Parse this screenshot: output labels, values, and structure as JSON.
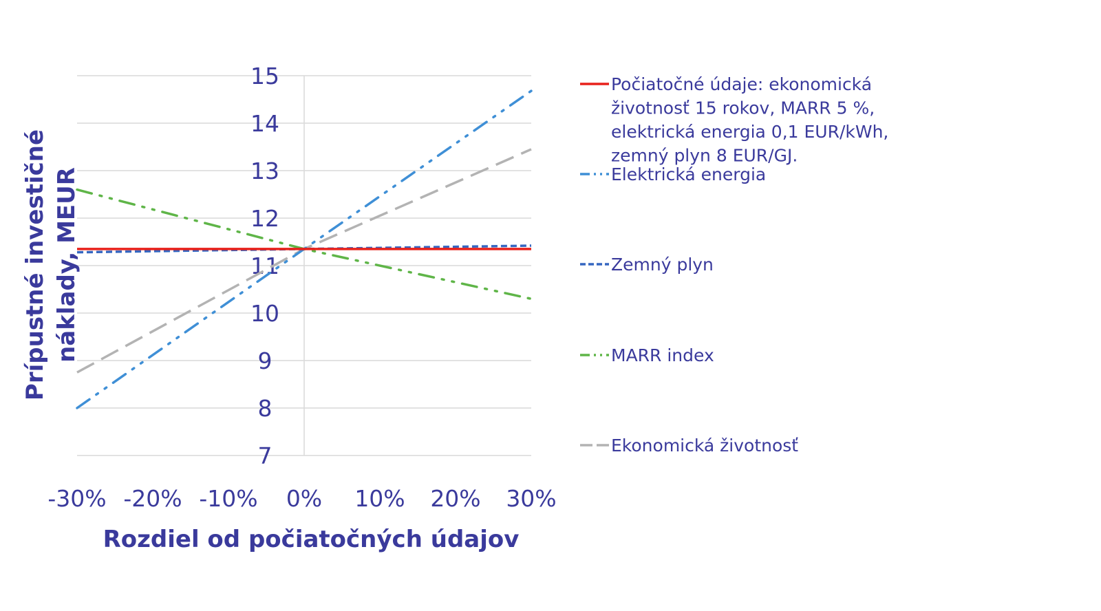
{
  "chart_data": {
    "type": "line",
    "xlabel": "Rozdiel od počiatočných údajov",
    "ylabel_lines": [
      "Prípustné investičné",
      "náklady, MEUR"
    ],
    "x": [
      -30,
      0,
      30
    ],
    "x_ticks": [
      "-30%",
      "-20%",
      "-10%",
      "0%",
      "10%",
      "20%",
      "30%"
    ],
    "x_tick_values": [
      -30,
      -20,
      -10,
      0,
      10,
      20,
      30
    ],
    "xlim": [
      -30,
      30
    ],
    "y_ticks": [
      "7",
      "8",
      "9",
      "10",
      "11",
      "12",
      "13",
      "14",
      "15"
    ],
    "ylim": [
      7,
      15
    ],
    "grid": "horizontal",
    "legend_position": "right",
    "series": [
      {
        "name_lines": [
          "Počiatočné údaje: ekonomická",
          "životnosť 15 rokov, MARR 5 %,",
          "elektrická energia  0,1 EUR/kWh,",
          "zemný plyn 8 EUR/GJ."
        ],
        "values": [
          11.35,
          11.35,
          11.35
        ],
        "color": "#e8211b",
        "dash": "solid"
      },
      {
        "name_lines": [
          "Elektrická energia"
        ],
        "values": [
          8.0,
          11.35,
          14.68
        ],
        "color": "#3f8fd6",
        "dash": "dashdotdot"
      },
      {
        "name_lines": [
          "Zemný plyn"
        ],
        "values": [
          11.28,
          11.35,
          11.42
        ],
        "color": "#3566c0",
        "dash": "dash"
      },
      {
        "name_lines": [
          "MARR index"
        ],
        "values": [
          12.6,
          11.35,
          10.3
        ],
        "color": "#5fb548",
        "dash": "dashdotdot"
      },
      {
        "name_lines": [
          "Ekonomická životnosť"
        ],
        "values": [
          8.75,
          11.35,
          13.45
        ],
        "color": "#b3b3b3",
        "dash": "longdash"
      }
    ]
  }
}
